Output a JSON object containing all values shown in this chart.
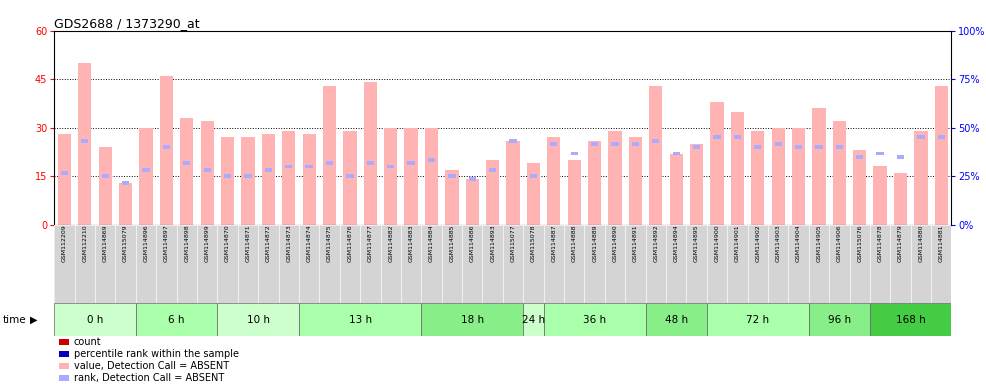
{
  "title": "GDS2688 / 1373290_at",
  "samples": [
    "GSM112209",
    "GSM112210",
    "GSM114869",
    "GSM115079",
    "GSM114896",
    "GSM114897",
    "GSM114898",
    "GSM114899",
    "GSM114870",
    "GSM114871",
    "GSM114872",
    "GSM114873",
    "GSM114874",
    "GSM114875",
    "GSM114876",
    "GSM114877",
    "GSM114882",
    "GSM114883",
    "GSM114884",
    "GSM114885",
    "GSM114886",
    "GSM114893",
    "GSM115077",
    "GSM115078",
    "GSM114887",
    "GSM114888",
    "GSM114889",
    "GSM114890",
    "GSM114891",
    "GSM114892",
    "GSM114894",
    "GSM114895",
    "GSM114900",
    "GSM114901",
    "GSM114902",
    "GSM114903",
    "GSM114904",
    "GSM114905",
    "GSM114906",
    "GSM115076",
    "GSM114878",
    "GSM114879",
    "GSM114880",
    "GSM114881"
  ],
  "values": [
    28,
    50,
    24,
    13,
    30,
    46,
    33,
    32,
    27,
    27,
    28,
    29,
    28,
    43,
    29,
    44,
    30,
    30,
    30,
    17,
    14,
    20,
    26,
    19,
    27,
    20,
    26,
    29,
    27,
    43,
    22,
    25,
    38,
    35,
    29,
    30,
    30,
    36,
    32,
    23,
    18,
    16,
    29,
    43
  ],
  "ranks": [
    16,
    26,
    15,
    13,
    17,
    24,
    19,
    17,
    15,
    15,
    17,
    18,
    18,
    19,
    15,
    19,
    18,
    19,
    20,
    15,
    14,
    17,
    26,
    15,
    25,
    22,
    25,
    25,
    25,
    26,
    22,
    24,
    27,
    27,
    24,
    25,
    24,
    24,
    24,
    21,
    22,
    21,
    27,
    27
  ],
  "time_groups": [
    {
      "label": "0 h",
      "count": 4,
      "color": "#ccffcc"
    },
    {
      "label": "6 h",
      "count": 4,
      "color": "#aaffaa"
    },
    {
      "label": "10 h",
      "count": 4,
      "color": "#ccffcc"
    },
    {
      "label": "13 h",
      "count": 6,
      "color": "#aaffaa"
    },
    {
      "label": "18 h",
      "count": 5,
      "color": "#88ee88"
    },
    {
      "label": "24 h",
      "count": 1,
      "color": "#ccffcc"
    },
    {
      "label": "36 h",
      "count": 5,
      "color": "#aaffaa"
    },
    {
      "label": "48 h",
      "count": 3,
      "color": "#88ee88"
    },
    {
      "label": "72 h",
      "count": 5,
      "color": "#aaffaa"
    },
    {
      "label": "96 h",
      "count": 3,
      "color": "#88ee88"
    },
    {
      "label": "168 h",
      "count": 4,
      "color": "#44cc44"
    }
  ],
  "bar_color_absent": "#ffb3b3",
  "rank_color_absent": "#aaaaff",
  "ylim_left": [
    0,
    60
  ],
  "ylim_right": [
    0,
    100
  ],
  "yticks_left": [
    0,
    15,
    30,
    45,
    60
  ],
  "yticks_right": [
    0,
    25,
    50,
    75,
    100
  ],
  "title_fontsize": 9,
  "tick_fontsize": 7,
  "time_label_fontsize": 7.5,
  "sample_fontsize": 4.5
}
